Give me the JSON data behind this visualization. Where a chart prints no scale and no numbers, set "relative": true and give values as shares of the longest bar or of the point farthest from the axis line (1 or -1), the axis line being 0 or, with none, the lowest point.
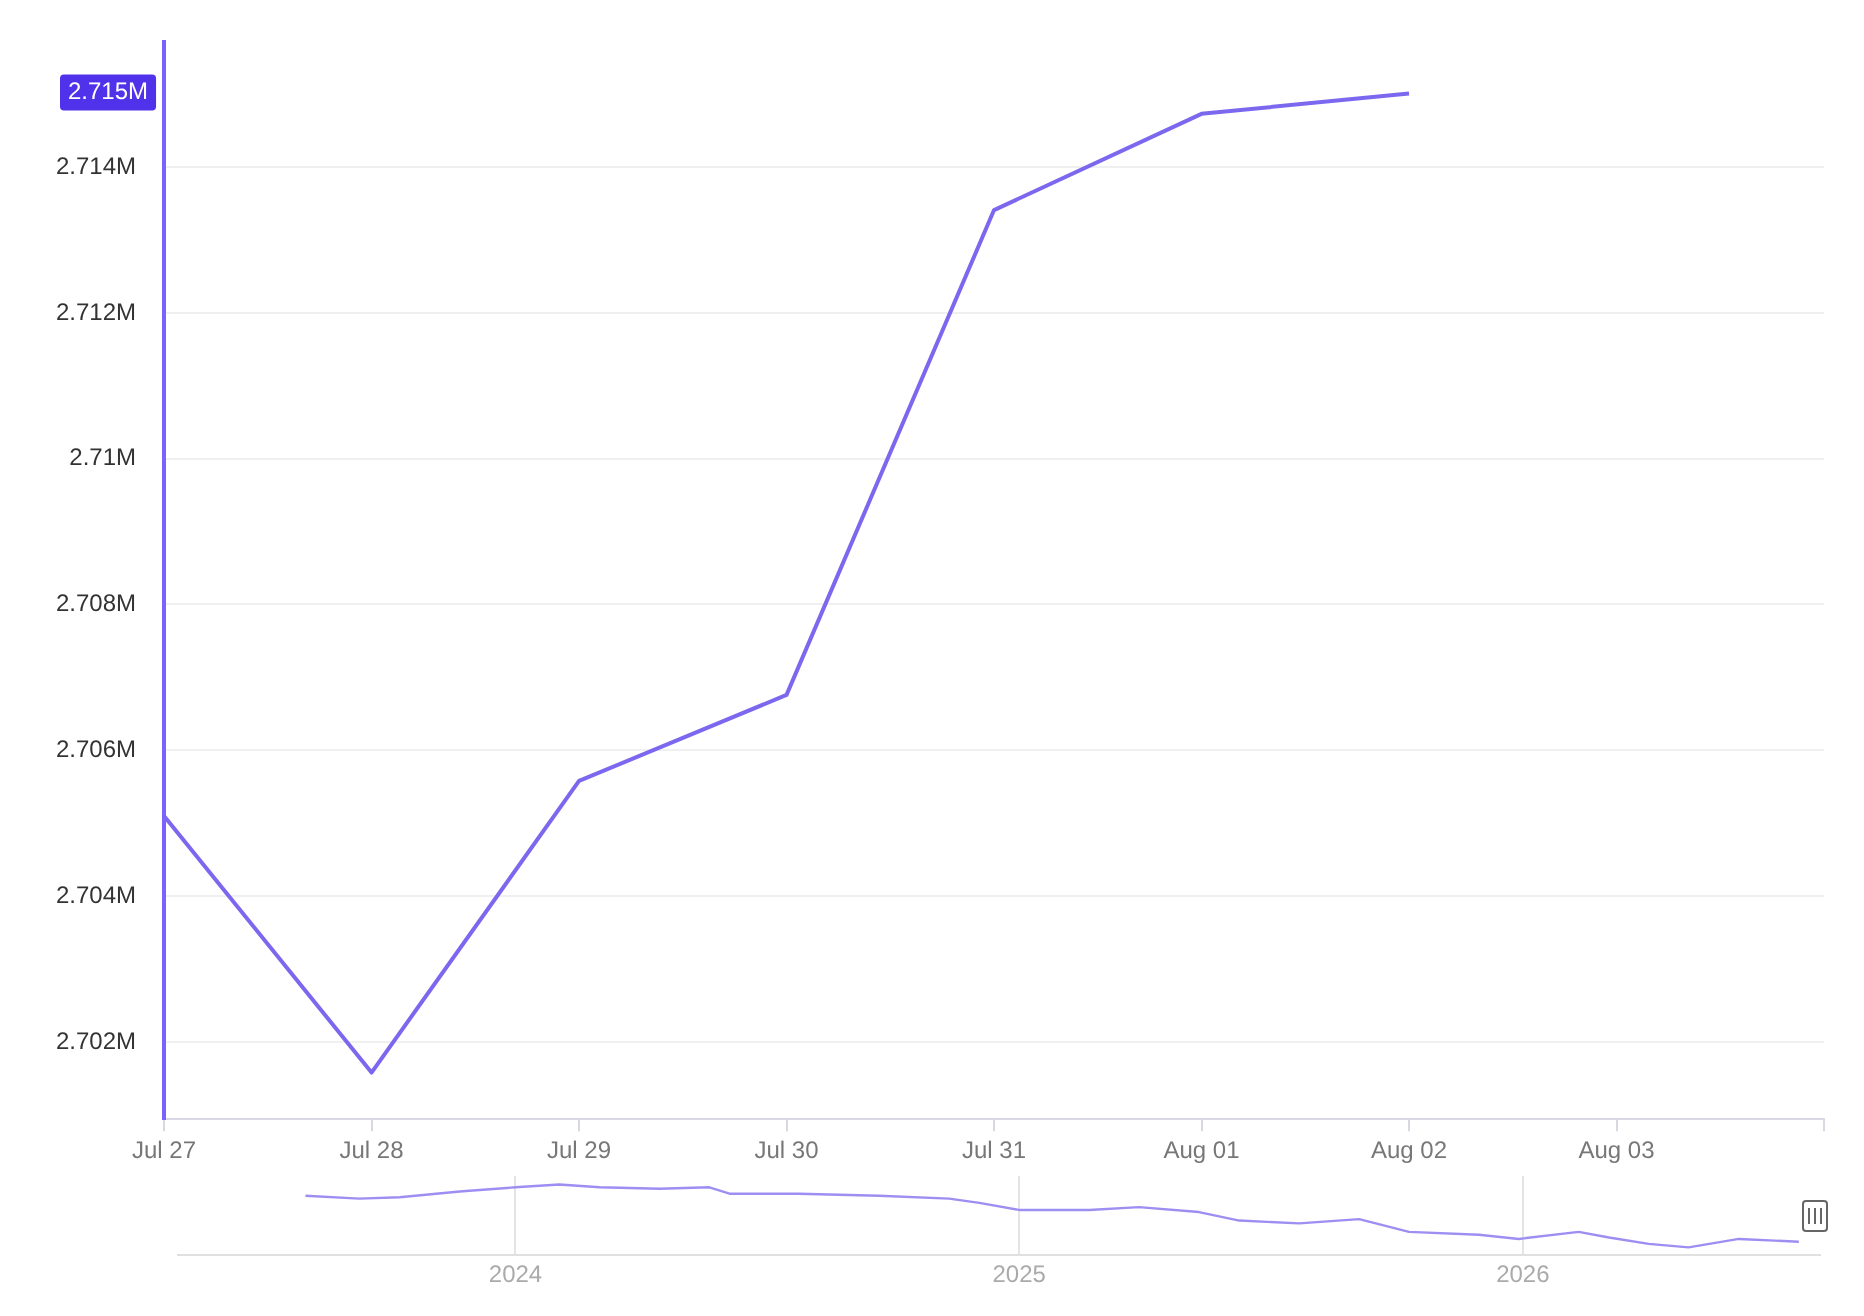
{
  "chart_data": [
    {
      "type": "line",
      "categories": [
        "Jul 27",
        "Jul 28",
        "Jul 29",
        "Jul 30",
        "Jul 31",
        "Aug 01",
        "Aug 02",
        "Aug 03",
        null
      ],
      "series": [
        {
          "color": "#7b68ee",
          "values": [
            2705100,
            2701580,
            2705580,
            2706760,
            2713410,
            2714730,
            2715010,
            null,
            null
          ]
        }
      ],
      "ylim": [
        2700940,
        2715710
      ],
      "yticks": [
        {
          "value": 2702000,
          "label": "2.702M"
        },
        {
          "value": 2704000,
          "label": "2.704M"
        },
        {
          "value": 2706000,
          "label": "2.706M"
        },
        {
          "value": 2708000,
          "label": "2.708M"
        },
        {
          "value": 2710000,
          "label": "2.71M"
        },
        {
          "value": 2712000,
          "label": "2.712M"
        },
        {
          "value": 2714000,
          "label": "2.714M"
        }
      ],
      "annotations": [
        "2.715M"
      ],
      "grid": "y",
      "legend": false,
      "marker": "none",
      "line_style": "solid"
    },
    {
      "type": "line",
      "relative": true,
      "x": [
        2023.583,
        2023.69,
        2023.77,
        2023.889,
        2024.0,
        2024.087,
        2024.167,
        2024.286,
        2024.385,
        2024.425,
        2024.563,
        2024.722,
        2024.861,
        2024.921,
        2025.0,
        2025.139,
        2025.238,
        2025.357,
        2025.437,
        2025.556,
        2025.675,
        2025.774,
        2025.913,
        2025.992,
        2026.111,
        2026.171,
        2026.25,
        2026.329,
        2026.429,
        2026.548
      ],
      "series": [
        {
          "color": "#9d8ff2",
          "values": [
            0.84,
            0.8,
            0.82,
            0.9,
            0.96,
            1,
            0.96,
            0.94,
            0.96,
            0.87,
            0.87,
            0.84,
            0.8,
            0.74,
            0.64,
            0.64,
            0.68,
            0.61,
            0.49,
            0.45,
            0.51,
            0.33,
            0.29,
            0.23,
            0.33,
            0.25,
            0.16,
            0.11,
            0.23,
            0.19
          ]
        }
      ],
      "xlim": [
        2023.33,
        2026.59
      ],
      "xticks": [
        2024,
        2025,
        2026
      ],
      "grid": "x",
      "legend": false,
      "marker": "none",
      "line_style": "solid"
    }
  ]
}
